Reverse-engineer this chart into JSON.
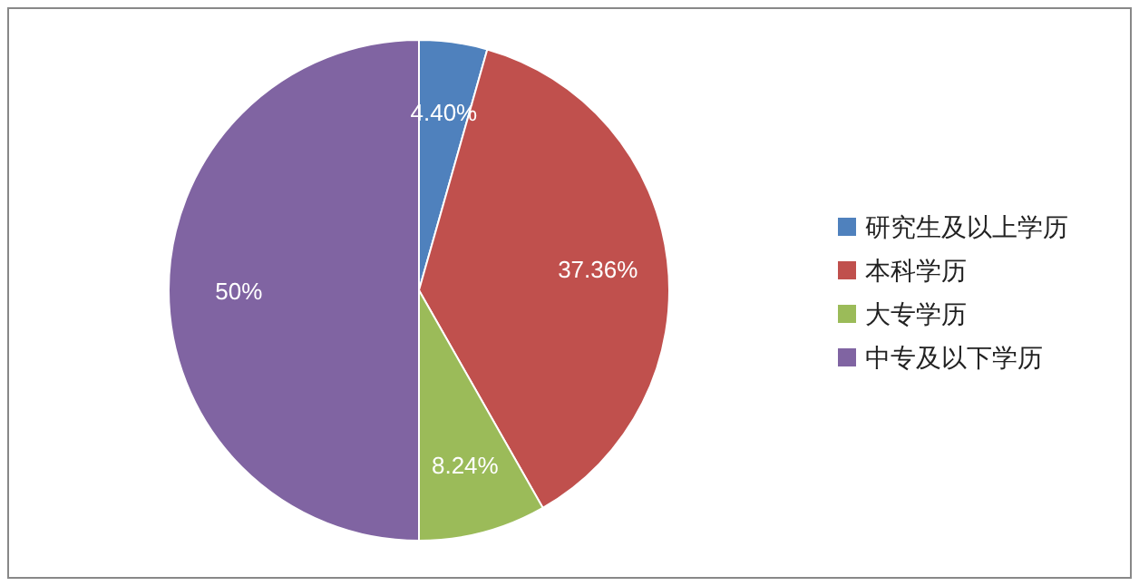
{
  "chart_data": {
    "type": "pie",
    "categories": [
      "研究生及以上学历",
      "本科学历",
      "大专学历",
      "中专及以下学历"
    ],
    "values": [
      4.4,
      37.36,
      8.24,
      50
    ],
    "colors": [
      "#4f81bd",
      "#c0504d",
      "#9bbb59",
      "#8064a2"
    ],
    "value_labels": [
      "4.40%",
      "37.36%",
      "8.24%",
      "50%"
    ],
    "legend": "right"
  }
}
